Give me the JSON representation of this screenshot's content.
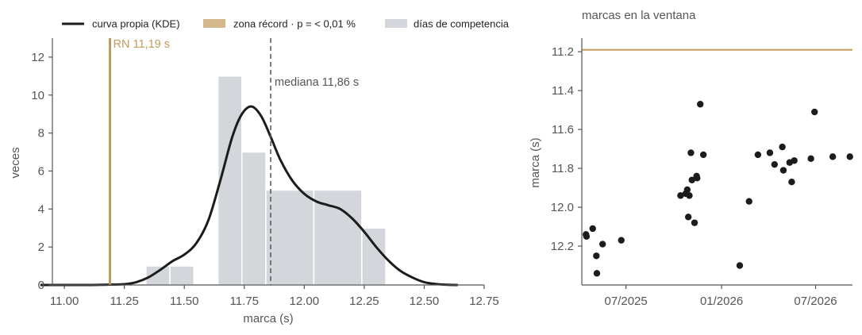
{
  "colors": {
    "kde": "#1c1c1c",
    "record": "#c19b5d",
    "record_patch": "#d2b88b",
    "bars": "#d3d6da",
    "median": "#555555",
    "points": "#1c1c1c",
    "text": "#555555"
  },
  "legend": {
    "kde": "curva propia (KDE)",
    "record_zone": "zona récord · p = < 0,01 %",
    "competition_days": "días de competencia"
  },
  "chart_data": [
    {
      "type": "bar",
      "title": "",
      "xlabel": "marca (s)",
      "ylabel": "veces",
      "xlim": [
        10.95,
        12.75
      ],
      "ylim": [
        0,
        13
      ],
      "x_ticks": [
        "11.00",
        "11.25",
        "11.50",
        "11.75",
        "12.00",
        "12.25",
        "12.50",
        "12.75"
      ],
      "y_ticks": [
        "0",
        "2",
        "4",
        "6",
        "8",
        "10",
        "12"
      ],
      "bin_edges": [
        11.34,
        11.44,
        11.54,
        11.64,
        11.74,
        11.84,
        11.94,
        12.04,
        12.14,
        12.24,
        12.34,
        12.44
      ],
      "counts": [
        1,
        1,
        0,
        11,
        7,
        5,
        0,
        5,
        0,
        3,
        0
      ],
      "histogram": {
        "name": "días de competencia",
        "bars": [
          {
            "x0": 11.34,
            "x1": 11.44,
            "count": 1
          },
          {
            "x0": 11.44,
            "x1": 11.54,
            "count": 1
          },
          {
            "x0": 11.64,
            "x1": 11.74,
            "count": 11
          },
          {
            "x0": 11.74,
            "x1": 11.84,
            "count": 7
          },
          {
            "x0": 11.84,
            "x1": 12.04,
            "count": 5
          },
          {
            "x0": 12.04,
            "x1": 12.24,
            "count": 5
          },
          {
            "x0": 12.24,
            "x1": 12.34,
            "count": 3
          }
        ]
      },
      "kde": {
        "name": "curva propia (KDE)",
        "x": [
          10.9,
          11.0,
          11.1,
          11.19,
          11.25,
          11.3,
          11.35,
          11.4,
          11.45,
          11.5,
          11.55,
          11.6,
          11.65,
          11.7,
          11.74,
          11.78,
          11.82,
          11.86,
          11.9,
          11.95,
          12.0,
          12.05,
          12.1,
          12.15,
          12.2,
          12.25,
          12.3,
          12.35,
          12.4,
          12.45,
          12.5,
          12.55,
          12.6,
          12.64
        ],
        "y": [
          0,
          0,
          0,
          0.02,
          0.04,
          0.15,
          0.4,
          0.8,
          1.25,
          1.6,
          2.2,
          3.4,
          5.5,
          7.8,
          9.0,
          9.4,
          8.9,
          7.8,
          6.6,
          5.5,
          4.8,
          4.4,
          4.2,
          4.0,
          3.5,
          2.8,
          2.0,
          1.3,
          0.75,
          0.4,
          0.15,
          0.05,
          0.01,
          0
        ]
      },
      "record": {
        "x": 11.19,
        "label": "RN 11,19 s"
      },
      "median": {
        "x": 11.86,
        "label": "mediana 11,86 s"
      }
    },
    {
      "type": "scatter",
      "title": "marcas en la ventana",
      "xlabel": "",
      "ylabel": "marca (s)",
      "x_range": [
        "2025-04-07",
        "2026-09-10"
      ],
      "ylim": [
        11.13,
        12.4
      ],
      "y_inverted": true,
      "x_ticks": [
        {
          "date": "2025-07-01",
          "label": "07/2025"
        },
        {
          "date": "2026-01-01",
          "label": "01/2026"
        },
        {
          "date": "2026-07-01",
          "label": "07/2026"
        }
      ],
      "y_ticks": [
        "11.2",
        "11.4",
        "11.6",
        "11.8",
        "12.0",
        "12.2"
      ],
      "reference_line": 11.19,
      "points": [
        {
          "date": "2025-04-15",
          "y": 12.14
        },
        {
          "date": "2025-04-16",
          "y": 12.15
        },
        {
          "date": "2025-04-28",
          "y": 12.11
        },
        {
          "date": "2025-05-05",
          "y": 12.25
        },
        {
          "date": "2025-05-06",
          "y": 12.34
        },
        {
          "date": "2025-05-17",
          "y": 12.19
        },
        {
          "date": "2025-06-22",
          "y": 12.17
        },
        {
          "date": "2025-10-14",
          "y": 11.94
        },
        {
          "date": "2025-10-24",
          "y": 11.93
        },
        {
          "date": "2025-10-27",
          "y": 11.91
        },
        {
          "date": "2025-10-29",
          "y": 12.05
        },
        {
          "date": "2025-10-31",
          "y": 11.94
        },
        {
          "date": "2025-11-03",
          "y": 11.72
        },
        {
          "date": "2025-11-05",
          "y": 11.86
        },
        {
          "date": "2025-11-10",
          "y": 12.08
        },
        {
          "date": "2025-11-14",
          "y": 11.84
        },
        {
          "date": "2025-11-15",
          "y": 11.85
        },
        {
          "date": "2025-11-21",
          "y": 11.47
        },
        {
          "date": "2025-11-27",
          "y": 11.73
        },
        {
          "date": "2026-02-05",
          "y": 12.3
        },
        {
          "date": "2026-02-23",
          "y": 11.97
        },
        {
          "date": "2026-03-12",
          "y": 11.73
        },
        {
          "date": "2026-04-04",
          "y": 11.72
        },
        {
          "date": "2026-04-13",
          "y": 11.78
        },
        {
          "date": "2026-04-28",
          "y": 11.69
        },
        {
          "date": "2026-04-30",
          "y": 11.81
        },
        {
          "date": "2026-05-12",
          "y": 11.77
        },
        {
          "date": "2026-05-16",
          "y": 11.87
        },
        {
          "date": "2026-05-21",
          "y": 11.76
        },
        {
          "date": "2026-06-22",
          "y": 11.75
        },
        {
          "date": "2026-06-29",
          "y": 11.51
        },
        {
          "date": "2026-08-03",
          "y": 11.74
        },
        {
          "date": "2026-09-05",
          "y": 11.74
        }
      ]
    }
  ]
}
